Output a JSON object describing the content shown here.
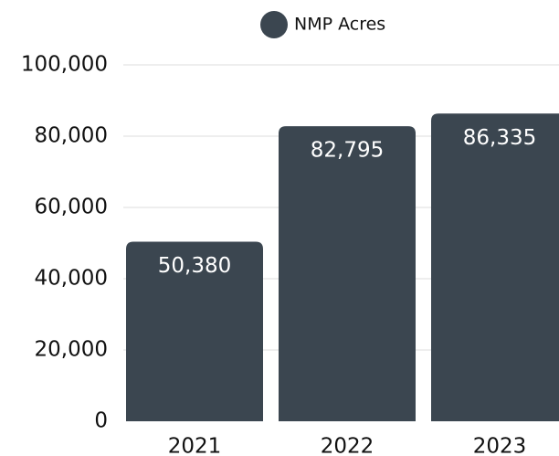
{
  "chart_data": {
    "type": "bar",
    "categories": [
      "2021",
      "2022",
      "2023"
    ],
    "series": [
      {
        "name": "NMP Acres",
        "color": "#3b4650",
        "values": [
          50380,
          82795,
          86335
        ],
        "value_labels": [
          "50,380",
          "82,795",
          "86,335"
        ]
      }
    ],
    "ylim": [
      0,
      100000
    ],
    "yticks": [
      0,
      {
        "value": 20000,
        "label": "20,000"
      },
      {
        "value": 40000,
        "label": "40,000"
      },
      {
        "value": 60000,
        "label": "60,000"
      },
      {
        "value": 80000,
        "label": "80,000"
      },
      {
        "value": 100000,
        "label": "100,000"
      }
    ],
    "grid": true,
    "legend": "top"
  }
}
